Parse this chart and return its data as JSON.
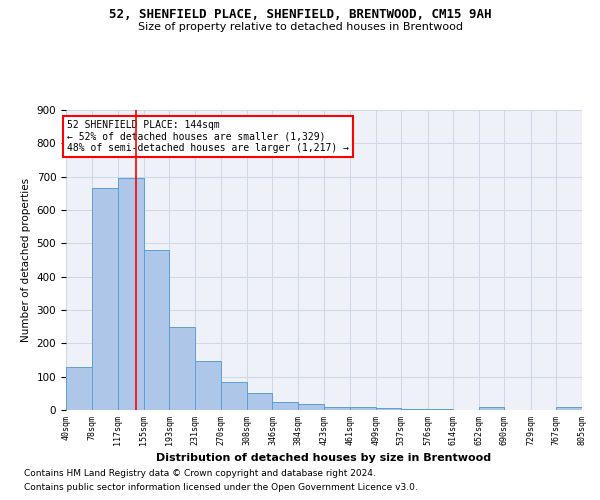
{
  "title1": "52, SHENFIELD PLACE, SHENFIELD, BRENTWOOD, CM15 9AH",
  "title2": "Size of property relative to detached houses in Brentwood",
  "xlabel": "Distribution of detached houses by size in Brentwood",
  "ylabel": "Number of detached properties",
  "footer1": "Contains HM Land Registry data © Crown copyright and database right 2024.",
  "footer2": "Contains public sector information licensed under the Open Government Licence v3.0.",
  "bins": [
    40,
    78,
    117,
    155,
    193,
    231,
    270,
    308,
    346,
    384,
    423,
    461,
    499,
    537,
    576,
    614,
    652,
    690,
    729,
    767,
    805
  ],
  "bin_labels": [
    "40sqm",
    "78sqm",
    "117sqm",
    "155sqm",
    "193sqm",
    "231sqm",
    "270sqm",
    "308sqm",
    "346sqm",
    "384sqm",
    "423sqm",
    "461sqm",
    "499sqm",
    "537sqm",
    "576sqm",
    "614sqm",
    "652sqm",
    "690sqm",
    "729sqm",
    "767sqm",
    "805sqm"
  ],
  "values": [
    130,
    665,
    695,
    480,
    248,
    148,
    83,
    50,
    25,
    18,
    10,
    8,
    5,
    3,
    3,
    0,
    10,
    0,
    0,
    8
  ],
  "bar_color": "#aec6e8",
  "bar_edge_color": "#5a9fd4",
  "property_line_x": 144,
  "annotation_title": "52 SHENFIELD PLACE: 144sqm",
  "annotation_line1": "← 52% of detached houses are smaller (1,329)",
  "annotation_line2": "48% of semi-detached houses are larger (1,217) →",
  "annotation_box_color": "white",
  "annotation_box_edge": "red",
  "grid_color": "#d0d8e8",
  "bg_color": "#eef2f8",
  "ylim": [
    0,
    900
  ],
  "yticks": [
    0,
    100,
    200,
    300,
    400,
    500,
    600,
    700,
    800,
    900
  ]
}
